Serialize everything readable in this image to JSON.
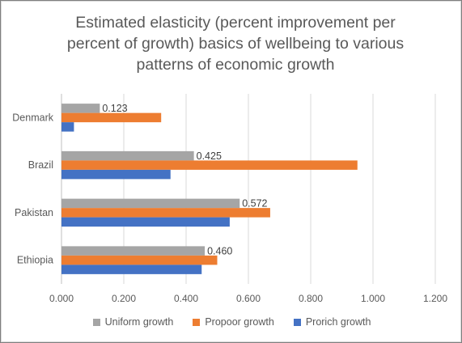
{
  "chart_data": {
    "type": "bar",
    "orientation": "horizontal",
    "title": "Estimated elasticity (percent improvement per percent of growth) basics of wellbeing to various patterns of economic growth",
    "title_lines": [
      "Estimated elasticity (percent improvement per",
      "percent of growth) basics of wellbeing to various",
      "patterns of economic growth"
    ],
    "categories": [
      "Denmark",
      "Brazil",
      "Pakistan",
      "Ethiopia"
    ],
    "series": [
      {
        "name": "Uniform growth",
        "color": "#a5a5a5",
        "values": [
          0.123,
          0.425,
          0.572,
          0.46
        ],
        "labels": [
          "0.123",
          "0.425",
          "0.572",
          "0.460"
        ]
      },
      {
        "name": "Propoor growth",
        "color": "#ed7d31",
        "values": [
          0.32,
          0.95,
          0.67,
          0.5
        ]
      },
      {
        "name": "Prorich growth",
        "color": "#4472c4",
        "values": [
          0.04,
          0.35,
          0.54,
          0.45
        ]
      }
    ],
    "xlim": [
      0,
      1.2
    ],
    "xticks": [
      "0.000",
      "0.200",
      "0.400",
      "0.600",
      "0.800",
      "1.000",
      "1.200"
    ],
    "xlabel": "",
    "ylabel": "",
    "grid": true,
    "legend_position": "bottom"
  }
}
